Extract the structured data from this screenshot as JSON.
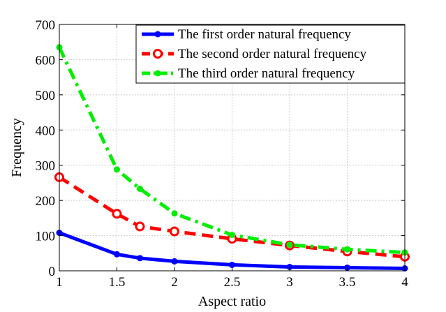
{
  "chart_data": {
    "type": "line",
    "title": "",
    "xlabel": "Aspect ratio",
    "ylabel": "Frequency",
    "xlim": [
      1,
      4
    ],
    "ylim": [
      0,
      700
    ],
    "xticks": [
      "1",
      "1.5",
      "2",
      "2.5",
      "3",
      "3.5",
      "4"
    ],
    "yticks": [
      "0",
      "100",
      "200",
      "300",
      "400",
      "500",
      "600",
      "700"
    ],
    "grid": true,
    "legend_position": "top-right",
    "x": [
      1,
      1.5,
      1.7,
      2,
      2.5,
      3,
      3.5,
      4
    ],
    "series": [
      {
        "name": "The first order natural frequency",
        "values": [
          108,
          47,
          36,
          27,
          17,
          11,
          9,
          7
        ],
        "color": "#0000ff",
        "line_style": "solid",
        "marker": "point"
      },
      {
        "name": "The second order natural frequency",
        "values": [
          266,
          162,
          126,
          112,
          91,
          72,
          55,
          40
        ],
        "color": "#ff0000",
        "line_style": "dashed",
        "marker": "circle"
      },
      {
        "name": "The third order natural frequency",
        "values": [
          635,
          288,
          233,
          163,
          102,
          74,
          61,
          52
        ],
        "color": "#00ee00",
        "line_style": "dash-dot",
        "marker": "point"
      }
    ]
  }
}
